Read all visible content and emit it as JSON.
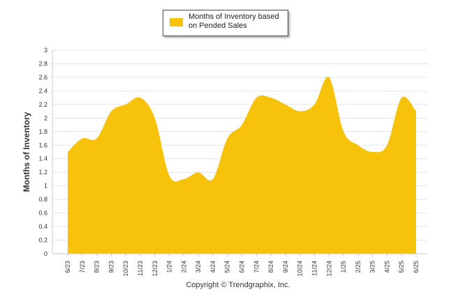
{
  "chart_data": {
    "type": "area",
    "categories": [
      "6/23",
      "7/23",
      "8/23",
      "9/23",
      "10/23",
      "11/23",
      "12/23",
      "1/24",
      "2/24",
      "3/24",
      "4/24",
      "5/24",
      "6/24",
      "7/24",
      "8/24",
      "9/24",
      "10/24",
      "11/24",
      "12/24",
      "1/25",
      "2/25",
      "3/25",
      "4/25",
      "5/25",
      "6/25"
    ],
    "series": [
      {
        "name": "Months of Inventory based on Pended Sales",
        "values": [
          1.5,
          1.7,
          1.7,
          2.1,
          2.2,
          2.3,
          2.0,
          1.15,
          1.1,
          1.2,
          1.1,
          1.7,
          1.9,
          2.3,
          2.3,
          2.2,
          2.1,
          2.2,
          2.6,
          1.8,
          1.6,
          1.5,
          1.6,
          2.3,
          2.1
        ]
      }
    ],
    "ylabel": "Months of Inventory",
    "xlabel": "",
    "ylim": [
      0,
      3
    ],
    "yticks": [
      0,
      0.2,
      0.4,
      0.6,
      0.8,
      1,
      1.2,
      1.4,
      1.6,
      1.8,
      2,
      2.2,
      2.4,
      2.6,
      2.8,
      3
    ],
    "ytick_labels": [
      "0",
      "0.2",
      "0.4",
      "0.6",
      "0.8",
      "1",
      "1.2",
      "1.4",
      "1.6",
      "1.8",
      "2",
      "2.2",
      "2.4",
      "2.6",
      "2.8",
      "3"
    ],
    "grid": true,
    "legend_position": "top-center",
    "colors": {
      "area": "#F7C30A",
      "grid": "#e4e4e4",
      "axis": "#c8c8c8"
    }
  },
  "legend": {
    "label": "Months of Inventory based on Pended Sales"
  },
  "footer": {
    "copyright": "Copyright © Trendgraphix, Inc."
  }
}
